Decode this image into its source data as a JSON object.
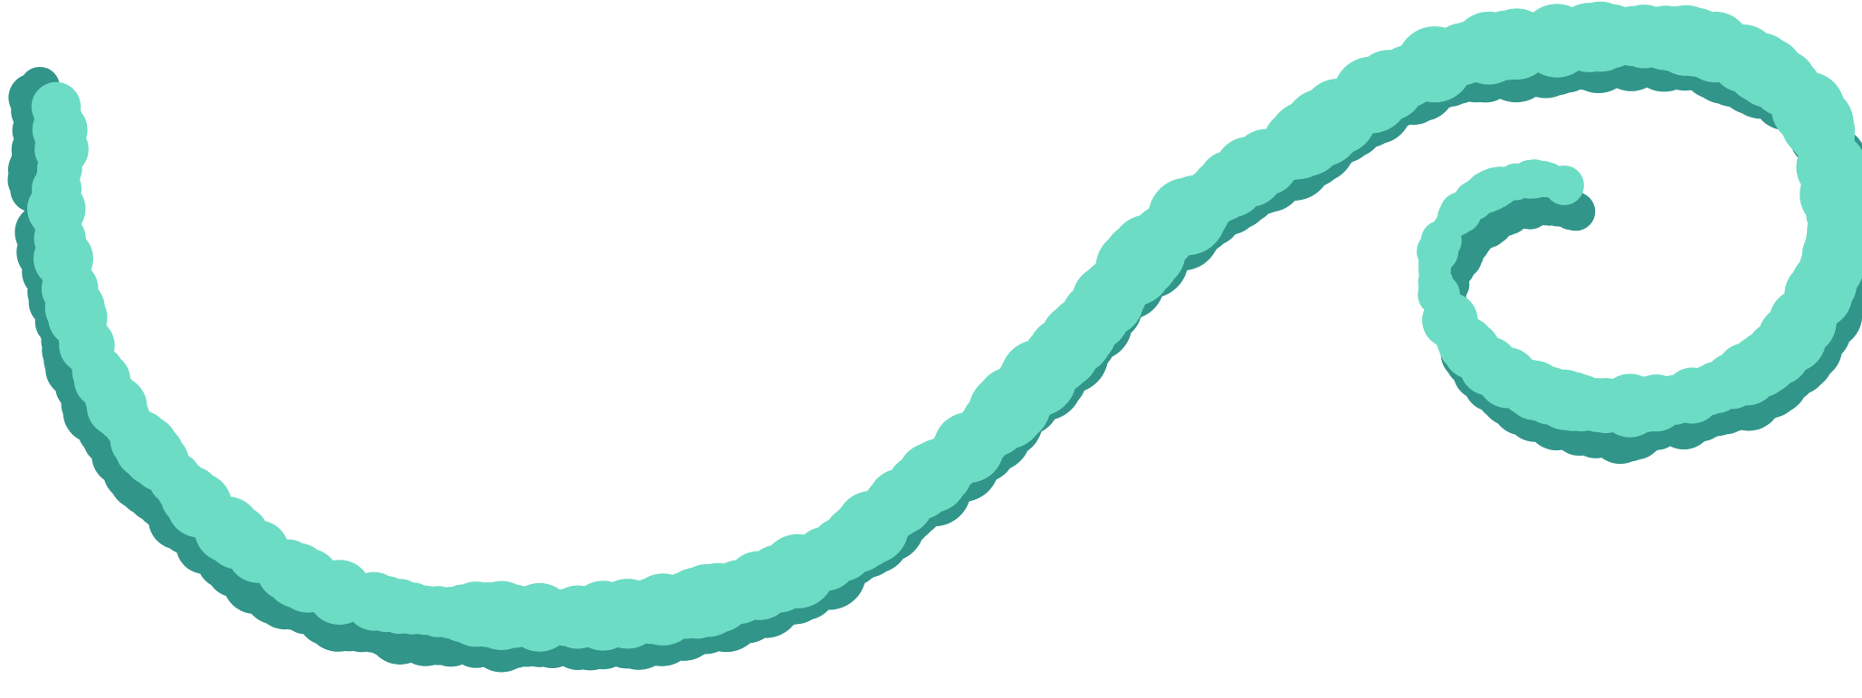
{
  "drawing": {
    "colors": {
      "background": "#ffffff",
      "shadow": "#31958a",
      "highlight": "#6ddcc4"
    }
  }
}
